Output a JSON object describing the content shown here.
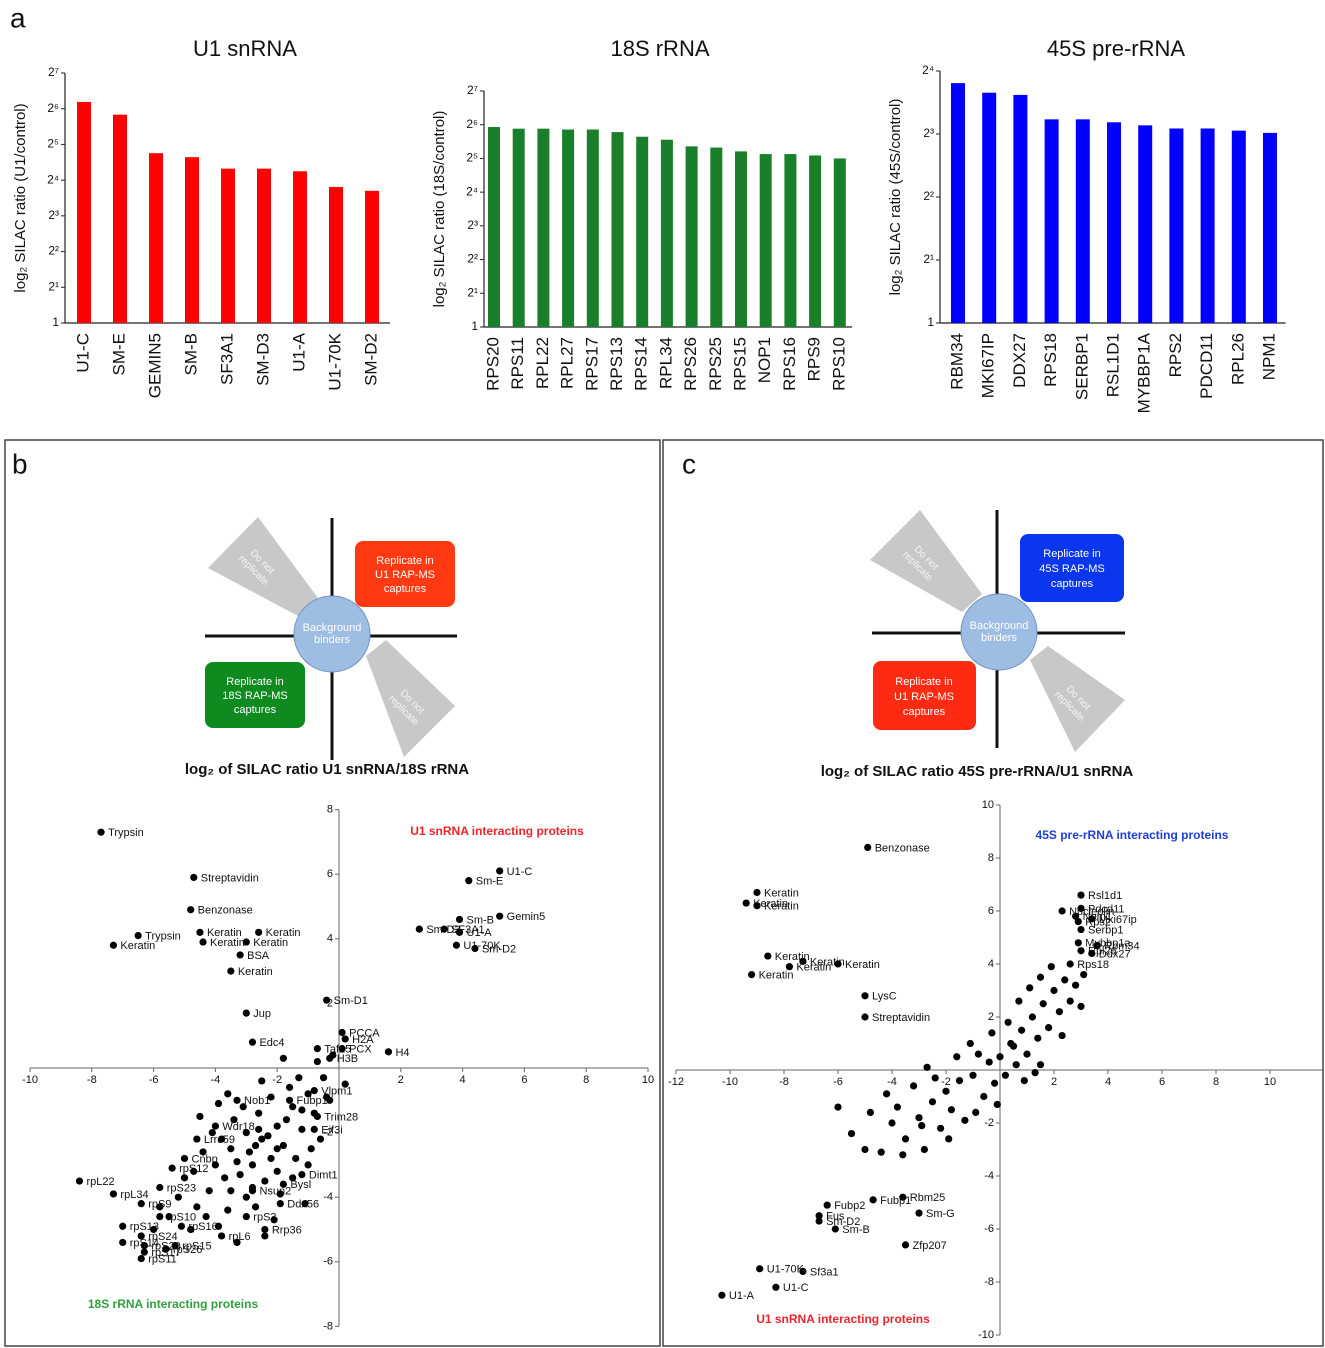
{
  "panels": [
    "a",
    "b",
    "c"
  ],
  "quadrant_b": {
    "top_left": [
      "Do not",
      "replicate"
    ],
    "top_right": [
      "Replicate in",
      "U1 RAP-MS",
      "captures"
    ],
    "center": [
      "Background",
      "binders"
    ],
    "bottom_left": [
      "Replicate in",
      "18S RAP-MS",
      "captures"
    ],
    "bottom_right": [
      "Do not",
      "replicate"
    ]
  },
  "quadrant_c": {
    "top_left": [
      "Do not",
      "replicate"
    ],
    "top_right": [
      "Replicate in",
      "45S RAP-MS",
      "captures"
    ],
    "center": [
      "Background",
      "binders"
    ],
    "bottom_left": [
      "Replicate in",
      "U1 RAP-MS",
      "captures"
    ],
    "bottom_right": [
      "Do not",
      "replicate"
    ]
  },
  "chart_data": [
    {
      "type": "bar",
      "title": "U1 snRNA",
      "y_label": "log₂ SILAC ratio (U1/control)",
      "color": "#ff0000",
      "log_scale": true,
      "categories": [
        "U1-C",
        "SM-E",
        "GEMIN5",
        "SM-B",
        "SF3A1",
        "SM-D3",
        "U1-A",
        "U1-70K",
        "SM-D2"
      ],
      "values": [
        73,
        57,
        27,
        25,
        20,
        20,
        19,
        14,
        13
      ],
      "ylim": [
        1,
        128
      ],
      "yticks": [
        1,
        {
          "value": 2,
          "label": "2¹"
        },
        {
          "value": 4,
          "label": "2²"
        },
        {
          "value": 8,
          "label": "2³"
        },
        {
          "value": 16,
          "label": "2⁴"
        },
        {
          "value": 32,
          "label": "2⁵"
        },
        {
          "value": 64,
          "label": "2⁶"
        },
        {
          "value": 128,
          "label": "2⁷"
        }
      ]
    },
    {
      "type": "bar",
      "title": "18S rRNA",
      "y_label": "log₂ SILAC ratio (18S/control)",
      "color": "#1a7f2a",
      "log_scale": true,
      "categories": [
        "RPS20",
        "RPS11",
        "RPL22",
        "RPL27",
        "RPS17",
        "RPS13",
        "RPS14",
        "RPL34",
        "RPS26",
        "RPS25",
        "RPS15",
        "NOP1",
        "RPS16",
        "RPS9",
        "RPS10"
      ],
      "values": [
        61,
        59,
        59,
        58,
        58,
        55,
        50,
        47,
        41,
        40,
        37,
        35,
        35,
        34,
        32
      ],
      "ylim": [
        1,
        128
      ],
      "yticks": [
        1,
        {
          "value": 2,
          "label": "2¹"
        },
        {
          "value": 4,
          "label": "2²"
        },
        {
          "value": 8,
          "label": "2³"
        },
        {
          "value": 16,
          "label": "2⁴"
        },
        {
          "value": 32,
          "label": "2⁵"
        },
        {
          "value": 64,
          "label": "2⁶"
        },
        {
          "value": 128,
          "label": "2⁷"
        }
      ]
    },
    {
      "type": "bar",
      "title": "45S pre-rRNA",
      "y_label": "log₂ SILAC ratio (45S/control)",
      "color": "#0000ff",
      "log_scale": true,
      "categories": [
        "RBM34",
        "MKI67IP",
        "DDX27",
        "RPS18",
        "SERBP1",
        "RSL1D1",
        "MYBBP1A",
        "RPS2",
        "PDCD11",
        "RPL26",
        "NPM1"
      ],
      "values": [
        14,
        12.6,
        12.3,
        9.4,
        9.4,
        9.1,
        8.8,
        8.5,
        8.5,
        8.3,
        8.1
      ],
      "ylim": [
        1,
        16
      ],
      "yticks": [
        1,
        {
          "value": 2,
          "label": "2¹"
        },
        {
          "value": 4,
          "label": "2²"
        },
        {
          "value": 8,
          "label": "2³"
        },
        {
          "value": 16,
          "label": "2⁴"
        }
      ]
    },
    {
      "type": "scatter",
      "title": "log₂ of SILAC ratio U1 snRNA/18S rRNA",
      "color": "#000000",
      "annotations": [
        {
          "text": "U1 snRNA interacting proteins",
          "color": "#e8262f"
        },
        {
          "text": "18S rRNA interacting proteins",
          "color": "#2fa040"
        }
      ],
      "xlim": [
        -10,
        10
      ],
      "ylim": [
        -8,
        8
      ],
      "xticks": [
        -10,
        -8,
        -6,
        -4,
        -2,
        2,
        4,
        6,
        8,
        10
      ],
      "yticks": [
        -8,
        -6,
        -4,
        -2,
        2,
        4,
        6,
        8
      ],
      "x": [
        -7.7,
        -4.7,
        -4.8,
        -4.5,
        -2.6,
        -6.5,
        -7.3,
        -4.4,
        -3.0,
        -3.2,
        -3.5,
        5.2,
        4.2,
        3.9,
        5.2,
        3.4,
        3.9,
        2.6,
        3.8,
        4.4,
        -0.4,
        -3.0,
        -2.8,
        -0.7,
        0.1,
        0.2,
        0.1,
        -0.3,
        1.6,
        -3.3,
        -0.8,
        -1.6,
        -0.7,
        -4.0,
        -0.8,
        -4.6,
        -5.0,
        -1.2,
        -5.4,
        -8.4,
        -1.8,
        -5.8,
        -7.3,
        -2.8,
        -6.4,
        -1.9,
        -5.8,
        -3.0,
        -7.0,
        -5.1,
        -6.4,
        -2.4,
        -3.8,
        -7.0,
        -5.3,
        -6.3,
        -6.3,
        -5.6,
        -6.4,
        -3,
        -2.5,
        -2,
        -3.5,
        -2.8,
        -1.5,
        -1,
        -0.5,
        -2.2,
        -3.2,
        -4,
        -3.8,
        -2.6,
        -1.8,
        -1.2,
        -2.4,
        -3,
        -4.2,
        -4.6,
        -3.6,
        -2,
        -1.4,
        -0.8,
        -1.6,
        -2.2,
        -0.3,
        -0.6,
        -3.4,
        -4.4,
        -5,
        -5.2,
        -4.8,
        -3.9,
        -2.7,
        -2.1,
        -1.9,
        -1,
        -0.9,
        -2.9,
        -3.3,
        -2.3,
        -1.7,
        -2.6,
        -3.7,
        -4.1,
        -3.1,
        -1.3,
        -0.7,
        -1.8,
        -2.5,
        0.2,
        -0.2,
        -3.6,
        -4.5,
        -1.1,
        -2.4,
        -3.3,
        -4.3,
        -5.5,
        -6,
        -1.5,
        -2.8,
        -3.5,
        -2.0,
        -2.7,
        -1.2,
        -0.4,
        -3.9,
        -4.7,
        -5.8
      ],
      "values": [
        7.3,
        5.9,
        4.9,
        4.2,
        4.2,
        4.1,
        3.8,
        3.9,
        3.9,
        3.5,
        3.0,
        6.1,
        5.8,
        4.6,
        4.7,
        4.3,
        4.2,
        4.3,
        3.8,
        3.7,
        2.1,
        1.7,
        0.8,
        0.6,
        1.1,
        0.9,
        0.6,
        0.3,
        0.5,
        -1.0,
        -0.7,
        -1.0,
        -1.5,
        -1.8,
        -1.9,
        -2.2,
        -2.8,
        -3.3,
        -3.1,
        -3.5,
        -3.6,
        -3.7,
        -3.9,
        -3.8,
        -4.2,
        -4.2,
        -4.6,
        -4.6,
        -4.9,
        -4.9,
        -5.2,
        -5.0,
        -5.2,
        -5.4,
        -5.5,
        -5.5,
        -5.7,
        -5.6,
        -5.9,
        -2,
        -2.2,
        -1.8,
        -2.5,
        -3,
        -1.2,
        -0.8,
        -0.3,
        -2.8,
        -3.3,
        -3,
        -2.2,
        -1.4,
        -2.4,
        -1.9,
        -3.5,
        -4,
        -3.8,
        -4.3,
        -4.4,
        -3.2,
        -2.8,
        -1.4,
        -0.6,
        -0.9,
        -1,
        -2.2,
        -1.6,
        -2.6,
        -3.4,
        -4,
        -5,
        -4.9,
        -4.3,
        -4.7,
        -3.9,
        -3,
        -2.5,
        -2.6,
        -2.9,
        -2.1,
        -1.6,
        -1.9,
        -3.4,
        -2.0,
        -1.2,
        -0.3,
        0.2,
        0.3,
        -0.4,
        -0.5,
        0.4,
        -0.8,
        -1.5,
        -4.2,
        -5.2,
        -5.4,
        -4.6,
        -4.6,
        -5,
        -3.4,
        -3.7,
        -3.8,
        -2.5,
        -2.4,
        -1.3,
        -0.9,
        -1.1,
        -3.2,
        -4.3
      ],
      "point_labels": [
        "Trypsin",
        "Streptavidin",
        "Benzonase",
        "Keratin",
        "Keratin",
        "Trypsin",
        "Keratin",
        "Keratin",
        "Keratin",
        "BSA",
        "Keratin",
        "U1-C",
        "Sm-E",
        "Sm-B",
        "Gemin5",
        "SF3A1",
        "U1-A",
        "Sm-D3",
        "U1-70K",
        "Sm-D2",
        "Sm-D1",
        "Jup",
        "Edc4",
        "Taf15",
        "PCCA",
        "H2A",
        "PCX",
        "H3B",
        "H4",
        "Nob1",
        "Vlpm1",
        "Fubp1",
        "Trim28",
        "Wdr18",
        "Eif3i",
        "Lrrc59",
        "Cnbp",
        "Dimt1",
        "rpS12",
        "rpL22",
        "Bysl",
        "rpS23",
        "rpL34",
        "Nsun2",
        "rpS9",
        "Ddx56",
        "rpS10",
        "rpS3",
        "rpS13",
        "rpS16",
        "rpS24",
        "Rrp36",
        "rpL6",
        "rpS14",
        "rpS15",
        "rpS20",
        "rpS17",
        "rpS26",
        "rpS11",
        null,
        null,
        null,
        null,
        null,
        null,
        null,
        null,
        null,
        null,
        null,
        null,
        null,
        null,
        null,
        null,
        null,
        null,
        null,
        null,
        null,
        null,
        null,
        null,
        null,
        null,
        null,
        null,
        null,
        null,
        null,
        null,
        null,
        null,
        null,
        null,
        null,
        null,
        null,
        null,
        null,
        null,
        null,
        null,
        null,
        null,
        null,
        null,
        null,
        null,
        null,
        null,
        null,
        null,
        null,
        null,
        null,
        null,
        null,
        null,
        null,
        null,
        null,
        null,
        null,
        null,
        null,
        null,
        null,
        null
      ]
    },
    {
      "type": "scatter",
      "title": "log₂ of SILAC ratio 45S pre-rRNA/U1 snRNA",
      "color": "#000000",
      "annotations": [
        {
          "text": "45S pre-rRNA interacting proteins",
          "color": "#1f3fd6"
        },
        {
          "text": "U1 snRNA interacting proteins",
          "color": "#e8262f"
        }
      ],
      "xlim": [
        -12,
        12
      ],
      "ylim": [
        -10,
        10
      ],
      "xticks": [
        -12,
        -10,
        -8,
        -6,
        -4,
        -2,
        2,
        4,
        6,
        8,
        10
      ],
      "yticks": [
        -10,
        -8,
        -6,
        -4,
        -2,
        2,
        4,
        6,
        8,
        10
      ],
      "x": [
        -4.9,
        -9.0,
        -9.0,
        -9.4,
        -8.6,
        -7.3,
        -7.8,
        -6.0,
        -9.2,
        -5.0,
        -5.0,
        3.0,
        3.0,
        2.3,
        2.8,
        3.4,
        2.9,
        3.0,
        2.9,
        3.6,
        3.0,
        3.4,
        2.6,
        -6.4,
        -3.6,
        -4.7,
        -6.7,
        -3.0,
        -6.7,
        -6.1,
        -3.5,
        -8.9,
        -7.3,
        -8.3,
        -10.3,
        -5,
        -4.4,
        -4,
        -3.5,
        -3,
        -2.8,
        -2.5,
        -2.2,
        -2,
        -1.8,
        -1.5,
        -1.3,
        -1,
        -0.8,
        -0.6,
        -0.4,
        -0.2,
        0,
        0.2,
        0.4,
        0.6,
        0.8,
        1,
        1.2,
        1.4,
        1.6,
        1.8,
        2,
        2.2,
        2.4,
        2.6,
        2.8,
        3,
        3.1,
        -3.8,
        -4.8,
        -5.5,
        -6,
        -4.2,
        -3.2,
        -2.7,
        -1.6,
        -1.1,
        -0.3,
        0.3,
        0.7,
        1.1,
        1.5,
        1.9,
        -0.9,
        -1.9,
        -2.9,
        0.9,
        1.5,
        2.3,
        -0.1,
        -3.6,
        -2.4,
        0.5,
        1.3
      ],
      "values": [
        8.4,
        6.7,
        6.2,
        6.3,
        4.3,
        4.1,
        3.9,
        4.0,
        3.6,
        2.8,
        2.0,
        6.6,
        6.1,
        6.0,
        5.8,
        5.7,
        5.6,
        5.3,
        4.8,
        4.7,
        4.5,
        4.4,
        4.0,
        -5.1,
        -4.8,
        -4.9,
        -5.5,
        -5.4,
        -5.7,
        -6.0,
        -6.6,
        -7.5,
        -7.6,
        -8.2,
        -8.5,
        -3,
        -3.1,
        -2,
        -2.6,
        -1.8,
        -3,
        -1.2,
        -2.2,
        -0.8,
        -1.5,
        -0.4,
        -1.9,
        -0.2,
        0.6,
        -1,
        0.3,
        -0.5,
        0.5,
        -0.2,
        1,
        0.2,
        1.5,
        0.6,
        2,
        1.2,
        2.5,
        1.6,
        3,
        2.2,
        3.4,
        2.6,
        3.2,
        2.4,
        3.6,
        -1.4,
        -1.6,
        -2.4,
        -1.4,
        -0.9,
        -0.6,
        0.1,
        0.5,
        1,
        1.4,
        1.8,
        2.6,
        3.1,
        3.5,
        3.9,
        -1.6,
        -2.6,
        -2.1,
        -0.4,
        0.2,
        1.3,
        -1.3,
        -3.2,
        -0.3,
        0.9,
        -0.1
      ],
      "point_labels": [
        "Benzonase",
        "Keratin",
        "Keratin",
        "Keratin",
        "Keratin",
        "Keratin",
        "Keratin",
        "Keratin",
        "Keratin",
        "LysC",
        "Streptavidin",
        "Rsl1d1",
        "Pdcd11",
        "Nucleolin",
        "Npm1",
        "Mki67ip",
        "Rps2",
        "Serbp1",
        "Mybbp1a",
        "Rbm34",
        "Rpl26",
        "Ddx27",
        "Rps18",
        "Fubp2",
        "Rbm25",
        "Fubp1",
        "Fus",
        "Sm-G",
        "Sm-D2",
        "Sm-B",
        "Zfp207",
        "U1-70K",
        "Sf3a1",
        "U1-C",
        "U1-A",
        null,
        null,
        null,
        null,
        null,
        null,
        null,
        null,
        null,
        null,
        null,
        null,
        null,
        null,
        null,
        null,
        null,
        null,
        null,
        null,
        null,
        null,
        null,
        null,
        null,
        null,
        null,
        null,
        null,
        null,
        null,
        null,
        null,
        null,
        null,
        null,
        null,
        null,
        null,
        null,
        null,
        null,
        null,
        null,
        null,
        null,
        null,
        null,
        null,
        null,
        null,
        null,
        null,
        null,
        null,
        null,
        null,
        null,
        null,
        null
      ]
    }
  ]
}
